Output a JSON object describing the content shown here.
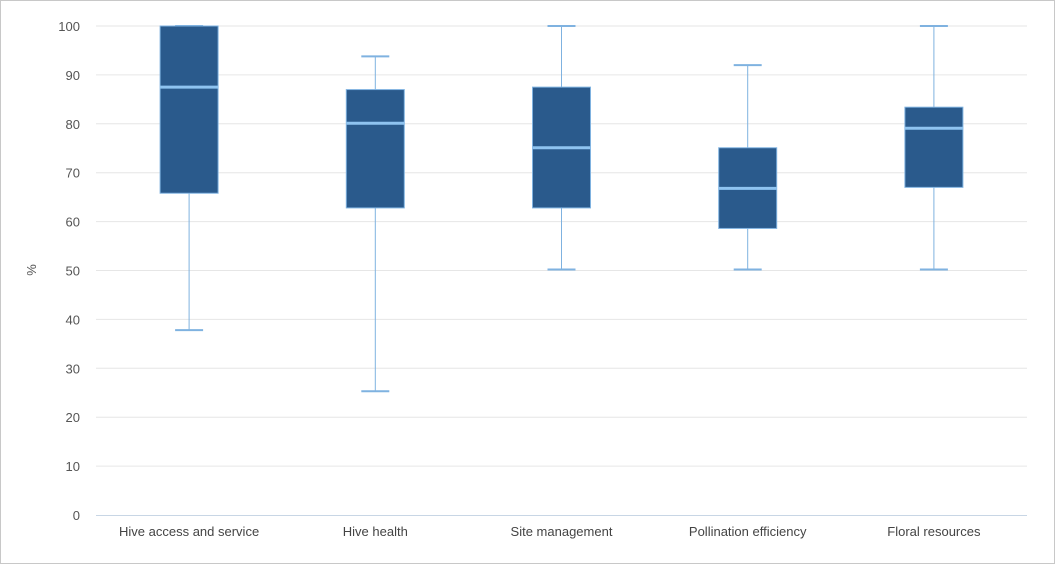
{
  "chart_data": {
    "type": "boxplot",
    "title": "",
    "xlabel": "",
    "ylabel": "%",
    "ylim": [
      0,
      100
    ],
    "yticks": [
      0,
      10,
      20,
      30,
      40,
      50,
      60,
      70,
      80,
      90,
      100
    ],
    "grid": true,
    "colors": {
      "box": "#2a5a8c",
      "box_border": "#7fb2e0",
      "median": "#8ec3f0",
      "whisker": "#7fb2e0",
      "grid": "#e6e6e6",
      "axis": "#c8d6e5"
    },
    "categories": [
      "Hive access and service",
      "Hive health",
      "Site management",
      "Pollination efficiency",
      "Floral resources"
    ],
    "boxes": [
      {
        "min": 37.8,
        "q1": 65.8,
        "median": 87.5,
        "q3": 100,
        "max": 100
      },
      {
        "min": 25.3,
        "q1": 62.8,
        "median": 80.1,
        "q3": 87.0,
        "max": 93.8
      },
      {
        "min": 50.2,
        "q1": 62.8,
        "median": 75.1,
        "q3": 87.5,
        "max": 100
      },
      {
        "min": 50.2,
        "q1": 58.6,
        "median": 66.8,
        "q3": 75.1,
        "max": 92.0
      },
      {
        "min": 50.2,
        "q1": 67.0,
        "median": 79.1,
        "q3": 83.4,
        "max": 100
      }
    ]
  }
}
